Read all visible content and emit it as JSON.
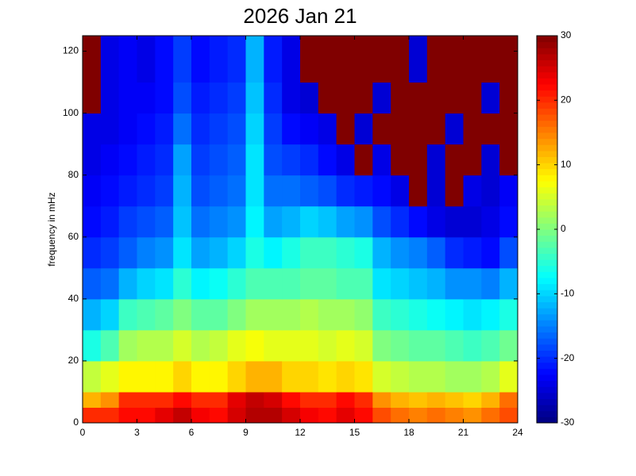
{
  "chart_data": {
    "type": "heatmap",
    "title": "2026 Jan 21",
    "y_label": "frequency in mHz",
    "colormap": "jet",
    "clim": [
      -30,
      30
    ],
    "cticks": [
      -30,
      -20,
      -10,
      0,
      10,
      20,
      30
    ],
    "xlim": [
      0,
      24
    ],
    "xticks": [
      0,
      3,
      6,
      9,
      12,
      15,
      18,
      21,
      24
    ],
    "ylim": [
      0,
      125
    ],
    "yticks": [
      0,
      20,
      40,
      60,
      80,
      100,
      120
    ],
    "x": [
      0,
      1,
      2,
      3,
      4,
      5,
      6,
      7,
      8,
      9,
      10,
      11,
      12,
      13,
      14,
      15,
      16,
      17,
      18,
      19,
      20,
      21,
      22,
      23,
      24
    ],
    "y": [
      0,
      5,
      10,
      20,
      30,
      40,
      50,
      60,
      70,
      80,
      90,
      100,
      110,
      125
    ],
    "values": [
      [
        20,
        20,
        22,
        22,
        24,
        26,
        23,
        22,
        25,
        27,
        27,
        25,
        23,
        22,
        24,
        22,
        18,
        16,
        15,
        16,
        15,
        14,
        16,
        18
      ],
      [
        12,
        14,
        20,
        20,
        20,
        22,
        20,
        20,
        24,
        26,
        25,
        22,
        20,
        20,
        22,
        20,
        14,
        12,
        11,
        12,
        11,
        10,
        12,
        16
      ],
      [
        4,
        6,
        8,
        8,
        8,
        10,
        8,
        8,
        10,
        12,
        12,
        10,
        10,
        9,
        10,
        9,
        5,
        4,
        3,
        3,
        2,
        2,
        3,
        6
      ],
      [
        -6,
        -3,
        2,
        3,
        3,
        5,
        3,
        4,
        6,
        7,
        6,
        6,
        6,
        5,
        6,
        5,
        0,
        -1,
        -2,
        -2,
        -3,
        -4,
        -3,
        -1
      ],
      [
        -12,
        -10,
        -4,
        -3,
        -2,
        0,
        -2,
        -2,
        0,
        2,
        2,
        2,
        3,
        2,
        2,
        1,
        -4,
        -5,
        -6,
        -7,
        -8,
        -9,
        -8,
        -6
      ],
      [
        -17,
        -16,
        -12,
        -10,
        -9,
        -5,
        -8,
        -7,
        -5,
        -3,
        -3,
        -3,
        -2,
        -2,
        -3,
        -3,
        -9,
        -10,
        -11,
        -12,
        -14,
        -14,
        -15,
        -12
      ],
      [
        -20,
        -19,
        -17,
        -15,
        -14,
        -9,
        -13,
        -12,
        -10,
        -6,
        -8,
        -6,
        -4,
        -4,
        -5,
        -6,
        -12,
        -14,
        -15,
        -17,
        -20,
        -21,
        -22,
        -18
      ],
      [
        -22,
        -21,
        -19,
        -18,
        -17,
        -11,
        -16,
        -15,
        -14,
        -8,
        -13,
        -12,
        -10,
        -11,
        -13,
        -14,
        -18,
        -20,
        -22,
        -24,
        -25,
        -25,
        -24,
        -22
      ],
      [
        -23,
        -22,
        -21,
        -20,
        -19,
        -12,
        -18,
        -17,
        -16,
        -9,
        -16,
        -16,
        -17,
        -18,
        -20,
        -21,
        -22,
        -24,
        30,
        -25,
        30,
        -24,
        -25,
        -23
      ],
      [
        -24,
        -23,
        -22,
        -21,
        -20,
        -13,
        -19,
        -18,
        -17,
        -9,
        -18,
        -19,
        -20,
        -22,
        -24,
        30,
        -24,
        30,
        30,
        -25,
        30,
        30,
        -25,
        30
      ],
      [
        -24,
        -24,
        -23,
        -22,
        -21,
        -16,
        -20,
        -19,
        -18,
        -10,
        -19,
        -22,
        -23,
        -24,
        30,
        -25,
        30,
        30,
        30,
        30,
        -25,
        30,
        30,
        30
      ],
      [
        30,
        -24,
        -23,
        -23,
        -22,
        -18,
        -21,
        -20,
        -19,
        -11,
        -20,
        -24,
        -25,
        30,
        30,
        30,
        -25,
        30,
        30,
        30,
        30,
        30,
        -25,
        30
      ],
      [
        30,
        -24,
        -23,
        -24,
        -22,
        -19,
        -22,
        -21,
        -20,
        -12,
        -21,
        -24,
        30,
        30,
        30,
        30,
        30,
        30,
        -25,
        30,
        30,
        30,
        30,
        30
      ]
    ]
  }
}
